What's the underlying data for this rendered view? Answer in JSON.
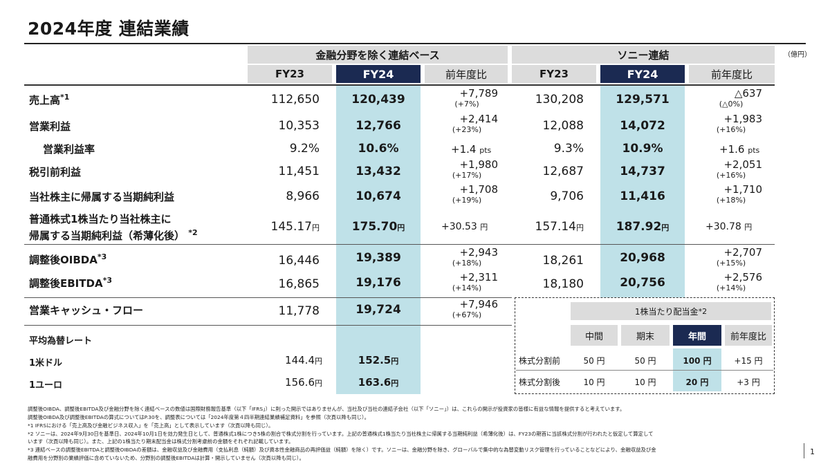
{
  "title": "2024年度 連結業績",
  "unit": "（億円）",
  "headers": {
    "group_ex_fin": "金融分野を除く連結ベース",
    "group_sony": "ソニー連結",
    "fy23": "FY23",
    "fy24": "FY24",
    "yoy": "前年度比"
  },
  "rows": [
    {
      "label": "売上高",
      "sup": "*1",
      "a23": "112,650",
      "a24": "120,439",
      "achg": "+7,789",
      "apct": "(+7%)",
      "b23": "130,208",
      "b24": "129,571",
      "bchg": "△637",
      "bpct": "(△0%)"
    },
    {
      "label": "営業利益",
      "sup": "",
      "a23": "10,353",
      "a24": "12,766",
      "achg": "+2,414",
      "apct": "(+23%)",
      "b23": "12,088",
      "b24": "14,072",
      "bchg": "+1,983",
      "bpct": "(+16%)"
    },
    {
      "label": "営業利益率",
      "sup": "",
      "a23": "9.2%",
      "a24": "10.6%",
      "achg": "+1.4",
      "apct": "pts",
      "b23": "9.3%",
      "b24": "10.9%",
      "bchg": "+1.6",
      "bpct": "pts"
    },
    {
      "label": "税引前利益",
      "sup": "",
      "a23": "11,451",
      "a24": "13,432",
      "achg": "+1,980",
      "apct": "(+17%)",
      "b23": "12,687",
      "b24": "14,737",
      "bchg": "+2,051",
      "bpct": "(+16%)"
    },
    {
      "label": "当社株主に帰属する当期純利益",
      "sup": "",
      "a23": "8,966",
      "a24": "10,674",
      "achg": "+1,708",
      "apct": "(+19%)",
      "b23": "9,706",
      "b24": "11,416",
      "bchg": "+1,710",
      "bpct": "(+18%)"
    },
    {
      "label1": "普通株式1株当たり当社株主に",
      "label2": "帰属する当期純利益（希薄化後）",
      "sup": "*2",
      "a23": "145.17",
      "a24": "175.70",
      "achg": "+30.53",
      "yen": "円",
      "b23": "157.14",
      "b24": "187.92",
      "bchg": "+30.78"
    },
    {
      "label": "調整後OIBDA",
      "sup": "*3",
      "a23": "16,446",
      "a24": "19,389",
      "achg": "+2,943",
      "apct": "(+18%)",
      "b23": "18,261",
      "b24": "20,968",
      "bchg": "+2,707",
      "bpct": "(+15%)"
    },
    {
      "label": "調整後EBITDA",
      "sup": "*3",
      "a23": "16,865",
      "a24": "19,176",
      "achg": "+2,311",
      "apct": "(+14%)",
      "b23": "18,180",
      "b24": "20,756",
      "bchg": "+2,576",
      "bpct": "(+14%)"
    },
    {
      "label": "営業キャッシュ・フロー",
      "sup": "",
      "a23": "11,778",
      "a24": "19,724",
      "achg": "+7,946",
      "apct": "(+67%)"
    }
  ],
  "fx": {
    "title": "平均為替レート",
    "usd_label": "1米ドル",
    "usd23": "144.4",
    "usd24": "152.5",
    "eur_label": "1ユーロ",
    "eur23": "156.6",
    "eur24": "163.6",
    "yen": "円"
  },
  "dividend": {
    "title": "1株当たり配当金",
    "sup": "*2",
    "cols": [
      "中間",
      "期末",
      "年間",
      "前年度比"
    ],
    "row1": {
      "label": "株式分割前",
      "v": [
        "50 円",
        "50 円",
        "100 円",
        "+15 円"
      ]
    },
    "row2": {
      "label": "株式分割後",
      "v": [
        "10 円",
        "10 円",
        "20 円",
        "+3 円"
      ]
    }
  },
  "footnotes": [
    "調整後OIBDA、調整後EBITDA及び金融分野を除く連結ベースの数値は国際財務報告基準（以下「IFRS」）に則った開示ではありませんが、当社及び当社の連結子会社（以下「ソニー」）は、これらの開示が投資家の皆様に有益な情報を提供すると考えています。",
    "調整後OIBDA及び調整後EBITDAの算式についてはP.30を、調整表については「2024年度第４四半期連結業績補足資料」を参照（次頁以降も同じ）。",
    "*1  IFRSにおける「売上高及び金融ビジネス収入」を「売上高」として表示しています（次頁以降も同じ）。",
    "*2  ソニーは、2024年9月30日を基準日、2024年10月1日を効力発生日として、普通株式1株につき5株の割合で株式分割を行っています。上記の普通株式1株当たり当社株主に帰属する当期純利益（希薄化後）は、FY23の期首に当該株式分割が行われたと仮定して算定して",
    "      います（次頁以降も同じ）。また、上記の1株当たり期末配当金は株式分割考慮前の金額をそれぞれ記載しています。",
    "*3  連結ベースの調整後EBITDAと調整後OIBDAの差額は、金融収益及び金融費用（支払利息（純額）及び資本性金融商品の再評価益（純額）を除く）です。ソニーは、金融分野を除き、グローバルで集中的な為替変動リスク管理を行っていることなどにより、金融収益及び金",
    "      融費用を分野別の業績評価に含めていないため、分野別の調整後EBITDAは計算・開示していません（次頁以降も同じ）。"
  ],
  "page_number": "1"
}
